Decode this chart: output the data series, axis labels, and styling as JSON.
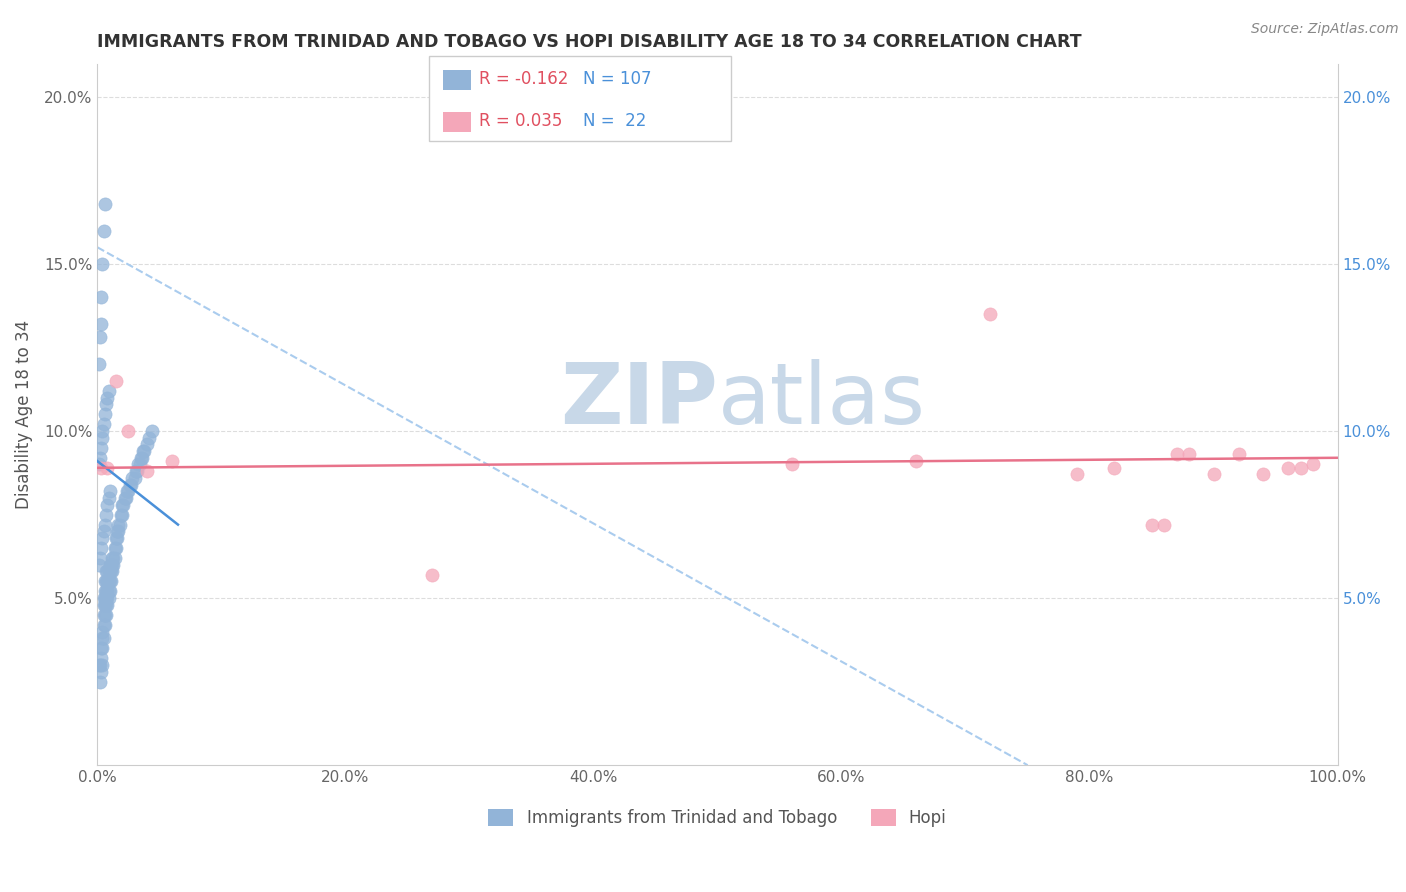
{
  "title": "IMMIGRANTS FROM TRINIDAD AND TOBAGO VS HOPI DISABILITY AGE 18 TO 34 CORRELATION CHART",
  "source_text": "Source: ZipAtlas.com",
  "ylabel": "Disability Age 18 to 34",
  "xlim": [
    0.0,
    1.0
  ],
  "ylim": [
    0.0,
    0.21
  ],
  "xticks": [
    0.0,
    0.2,
    0.4,
    0.6,
    0.8,
    1.0
  ],
  "xticklabels": [
    "0.0%",
    "20.0%",
    "40.0%",
    "60.0%",
    "80.0%",
    "100.0%"
  ],
  "yticks": [
    0.0,
    0.05,
    0.1,
    0.15,
    0.2
  ],
  "yticklabels": [
    "",
    "5.0%",
    "10.0%",
    "15.0%",
    "20.0%"
  ],
  "right_ytick_labels": [
    "",
    "5.0%",
    "10.0%",
    "15.0%",
    "20.0%"
  ],
  "blue_color": "#92B4D8",
  "pink_color": "#F4A7B9",
  "blue_line_color": "#4A90D9",
  "pink_line_color": "#E8728A",
  "dashed_line_color": "#AACCEE",
  "grid_color": "#DDDDDD",
  "title_color": "#333333",
  "legend_r_color": "#E05060",
  "legend_n_color": "#4A90D9",
  "watermark_color": "#C8D8E8",
  "series1_label": "Immigrants from Trinidad and Tobago",
  "series2_label": "Hopi",
  "r1": -0.162,
  "n1": 107,
  "r2": 0.035,
  "n2": 22,
  "blue_scatter_x": [
    0.001,
    0.002,
    0.002,
    0.003,
    0.003,
    0.003,
    0.004,
    0.004,
    0.004,
    0.004,
    0.005,
    0.005,
    0.005,
    0.005,
    0.005,
    0.006,
    0.006,
    0.006,
    0.006,
    0.006,
    0.006,
    0.007,
    0.007,
    0.007,
    0.007,
    0.007,
    0.007,
    0.008,
    0.008,
    0.008,
    0.008,
    0.008,
    0.009,
    0.009,
    0.009,
    0.009,
    0.01,
    0.01,
    0.01,
    0.01,
    0.011,
    0.011,
    0.011,
    0.012,
    0.012,
    0.012,
    0.013,
    0.013,
    0.014,
    0.014,
    0.015,
    0.015,
    0.016,
    0.016,
    0.017,
    0.017,
    0.018,
    0.019,
    0.02,
    0.02,
    0.021,
    0.022,
    0.023,
    0.024,
    0.025,
    0.026,
    0.027,
    0.028,
    0.03,
    0.031,
    0.032,
    0.033,
    0.034,
    0.035,
    0.036,
    0.037,
    0.038,
    0.04,
    0.042,
    0.044,
    0.001,
    0.002,
    0.003,
    0.004,
    0.005,
    0.006,
    0.007,
    0.008,
    0.009,
    0.01,
    0.001,
    0.002,
    0.003,
    0.004,
    0.004,
    0.005,
    0.006,
    0.007,
    0.008,
    0.009,
    0.001,
    0.002,
    0.003,
    0.003,
    0.004,
    0.005,
    0.006
  ],
  "blue_scatter_y": [
    0.03,
    0.025,
    0.03,
    0.028,
    0.032,
    0.035,
    0.03,
    0.035,
    0.038,
    0.04,
    0.038,
    0.042,
    0.045,
    0.048,
    0.05,
    0.042,
    0.045,
    0.048,
    0.05,
    0.052,
    0.055,
    0.045,
    0.048,
    0.05,
    0.052,
    0.055,
    0.058,
    0.048,
    0.05,
    0.052,
    0.055,
    0.058,
    0.05,
    0.052,
    0.055,
    0.058,
    0.052,
    0.055,
    0.058,
    0.06,
    0.055,
    0.058,
    0.06,
    0.058,
    0.06,
    0.062,
    0.06,
    0.062,
    0.062,
    0.065,
    0.065,
    0.068,
    0.068,
    0.07,
    0.07,
    0.072,
    0.072,
    0.075,
    0.075,
    0.078,
    0.078,
    0.08,
    0.08,
    0.082,
    0.082,
    0.084,
    0.084,
    0.086,
    0.086,
    0.088,
    0.088,
    0.09,
    0.09,
    0.092,
    0.092,
    0.094,
    0.094,
    0.096,
    0.098,
    0.1,
    0.06,
    0.062,
    0.065,
    0.068,
    0.07,
    0.072,
    0.075,
    0.078,
    0.08,
    0.082,
    0.09,
    0.092,
    0.095,
    0.098,
    0.1,
    0.102,
    0.105,
    0.108,
    0.11,
    0.112,
    0.12,
    0.128,
    0.132,
    0.14,
    0.15,
    0.16,
    0.168
  ],
  "pink_scatter_x": [
    0.003,
    0.008,
    0.015,
    0.025,
    0.04,
    0.06,
    0.27,
    0.56,
    0.66,
    0.72,
    0.79,
    0.82,
    0.85,
    0.86,
    0.87,
    0.88,
    0.9,
    0.92,
    0.94,
    0.96,
    0.97,
    0.98
  ],
  "pink_scatter_y": [
    0.089,
    0.089,
    0.115,
    0.1,
    0.088,
    0.091,
    0.057,
    0.09,
    0.091,
    0.135,
    0.087,
    0.089,
    0.072,
    0.072,
    0.093,
    0.093,
    0.087,
    0.093,
    0.087,
    0.089,
    0.089,
    0.09
  ],
  "blue_trend_x": [
    0.0,
    0.065
  ],
  "blue_trend_y": [
    0.091,
    0.072
  ],
  "pink_trend_x": [
    0.0,
    1.0
  ],
  "pink_trend_y": [
    0.089,
    0.092
  ],
  "dashed_trend_x": [
    0.0,
    0.75
  ],
  "dashed_trend_y": [
    0.155,
    0.0
  ]
}
